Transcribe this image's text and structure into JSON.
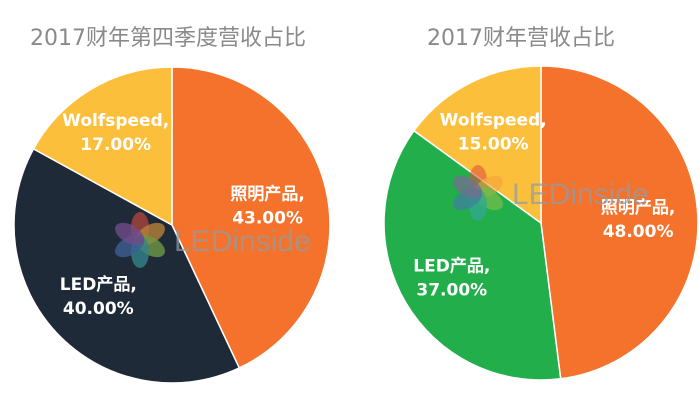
{
  "colors": {
    "orange": "#f4722b",
    "navy": "#1f2a38",
    "yellow": "#fbbf3c",
    "green": "#21ae4b",
    "text_light": "#ffffff",
    "title_gray": "#8a8a8a"
  },
  "watermark": {
    "text": "LEDinside"
  },
  "chart_data": [
    {
      "type": "pie",
      "title": "2017财年第四季度营收占比",
      "slices": [
        {
          "label": "照明产品",
          "value": 43.0,
          "display": "43.00%",
          "color": "#f4722b"
        },
        {
          "label": "LED产品",
          "value": 40.0,
          "display": "40.00%",
          "color": "#1f2a38"
        },
        {
          "label": "Wolfspeed",
          "value": 17.0,
          "display": "17.00%",
          "color": "#fbbf3c"
        }
      ]
    },
    {
      "type": "pie",
      "title": "2017财年营收占比",
      "slices": [
        {
          "label": "照明产品",
          "value": 48.0,
          "display": "48.00%",
          "color": "#f4722b"
        },
        {
          "label": "LED产品",
          "value": 37.0,
          "display": "37.00%",
          "color": "#21ae4b"
        },
        {
          "label": "Wolfspeed",
          "value": 15.0,
          "display": "15.00%",
          "color": "#fbbf3c"
        }
      ]
    }
  ]
}
